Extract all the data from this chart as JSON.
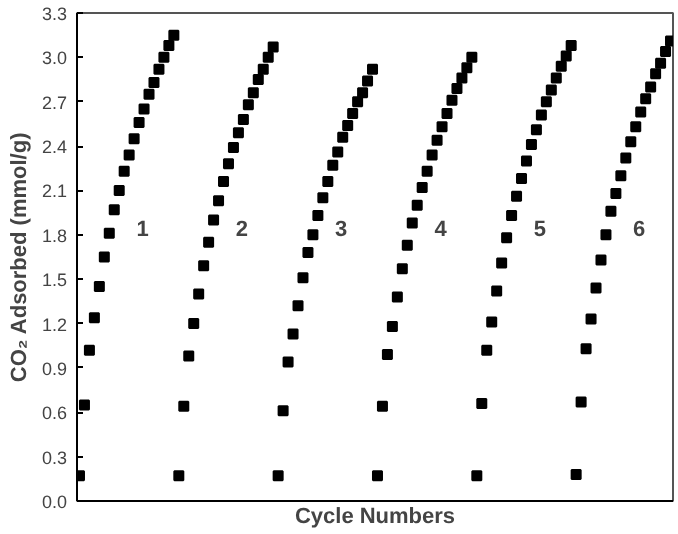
{
  "chart_data": {
    "type": "scatter",
    "xlabel": "Cycle Numbers",
    "ylabel": "CO₂ Adsorbed (mmol/g)",
    "categories": [
      null,
      null,
      null,
      null,
      null,
      null,
      null,
      null,
      null,
      null,
      null,
      null,
      null,
      null,
      null,
      null,
      null,
      null,
      null,
      null,
      null,
      null,
      null,
      null,
      null,
      null,
      null,
      null,
      null,
      null,
      null,
      null,
      null,
      null,
      null,
      null,
      null,
      null,
      null,
      null,
      null,
      null,
      null,
      null,
      null,
      null,
      null,
      null,
      null,
      null,
      null,
      null,
      null,
      null,
      null,
      null,
      null,
      null,
      null,
      null,
      null,
      null,
      null,
      null,
      null,
      null,
      null,
      null,
      null,
      null,
      null,
      null,
      null,
      null,
      null,
      null,
      null,
      null,
      null,
      null,
      null,
      null,
      null,
      null,
      null,
      null,
      null,
      null,
      null,
      null,
      null,
      null,
      null,
      null,
      null,
      null,
      null,
      null,
      null,
      null,
      null,
      null,
      null,
      null,
      null,
      null,
      null,
      null,
      null,
      null,
      null,
      null,
      null,
      null,
      null,
      null,
      null,
      null,
      null,
      null
    ],
    "ylim": [
      0,
      3.3
    ],
    "yticks": [
      {
        "value": 0,
        "label": "0.0"
      },
      0.3,
      0.6,
      0.9,
      1.2,
      1.5,
      1.8,
      2.1,
      2.4,
      2.7,
      {
        "value": 3,
        "label": "3.0"
      },
      3.3
    ],
    "tick_labels": "y",
    "grid": false,
    "marker": "square",
    "series": [
      {
        "color": "#000000",
        "values": [
          0.17,
          0.65,
          1.02,
          1.24,
          1.45,
          1.65,
          1.81,
          1.97,
          2.1,
          2.23,
          2.34,
          2.45,
          2.56,
          2.65,
          2.75,
          2.83,
          2.92,
          3.0,
          3.08,
          3.15,
          0.17,
          0.64,
          0.98,
          1.2,
          1.4,
          1.59,
          1.75,
          1.9,
          2.03,
          2.16,
          2.28,
          2.39,
          2.49,
          2.58,
          2.68,
          2.76,
          2.85,
          2.92,
          3.0,
          3.07,
          0.17,
          0.61,
          0.94,
          1.13,
          1.32,
          1.51,
          1.68,
          1.8,
          1.93,
          2.05,
          2.16,
          2.27,
          2.36,
          2.46,
          2.54,
          2.62,
          2.7,
          2.76,
          2.84,
          2.92,
          0.17,
          0.64,
          0.99,
          1.18,
          1.38,
          1.57,
          1.73,
          1.88,
          2.0,
          2.12,
          2.23,
          2.34,
          2.44,
          2.53,
          2.62,
          2.71,
          2.79,
          2.86,
          2.93,
          3.0,
          0.17,
          0.66,
          1.02,
          1.21,
          1.42,
          1.61,
          1.78,
          1.93,
          2.06,
          2.18,
          2.3,
          2.41,
          2.51,
          2.61,
          2.7,
          2.78,
          2.86,
          2.94,
          3.01,
          3.08,
          0.18,
          0.67,
          1.03,
          1.23,
          1.44,
          1.63,
          1.8,
          1.96,
          2.08,
          2.2,
          2.32,
          2.43,
          2.53,
          2.63,
          2.72,
          2.8,
          2.89,
          2.96,
          3.04,
          3.11
        ]
      }
    ],
    "annotations": [
      "1",
      "2",
      "3",
      "4",
      "5",
      "6"
    ]
  }
}
